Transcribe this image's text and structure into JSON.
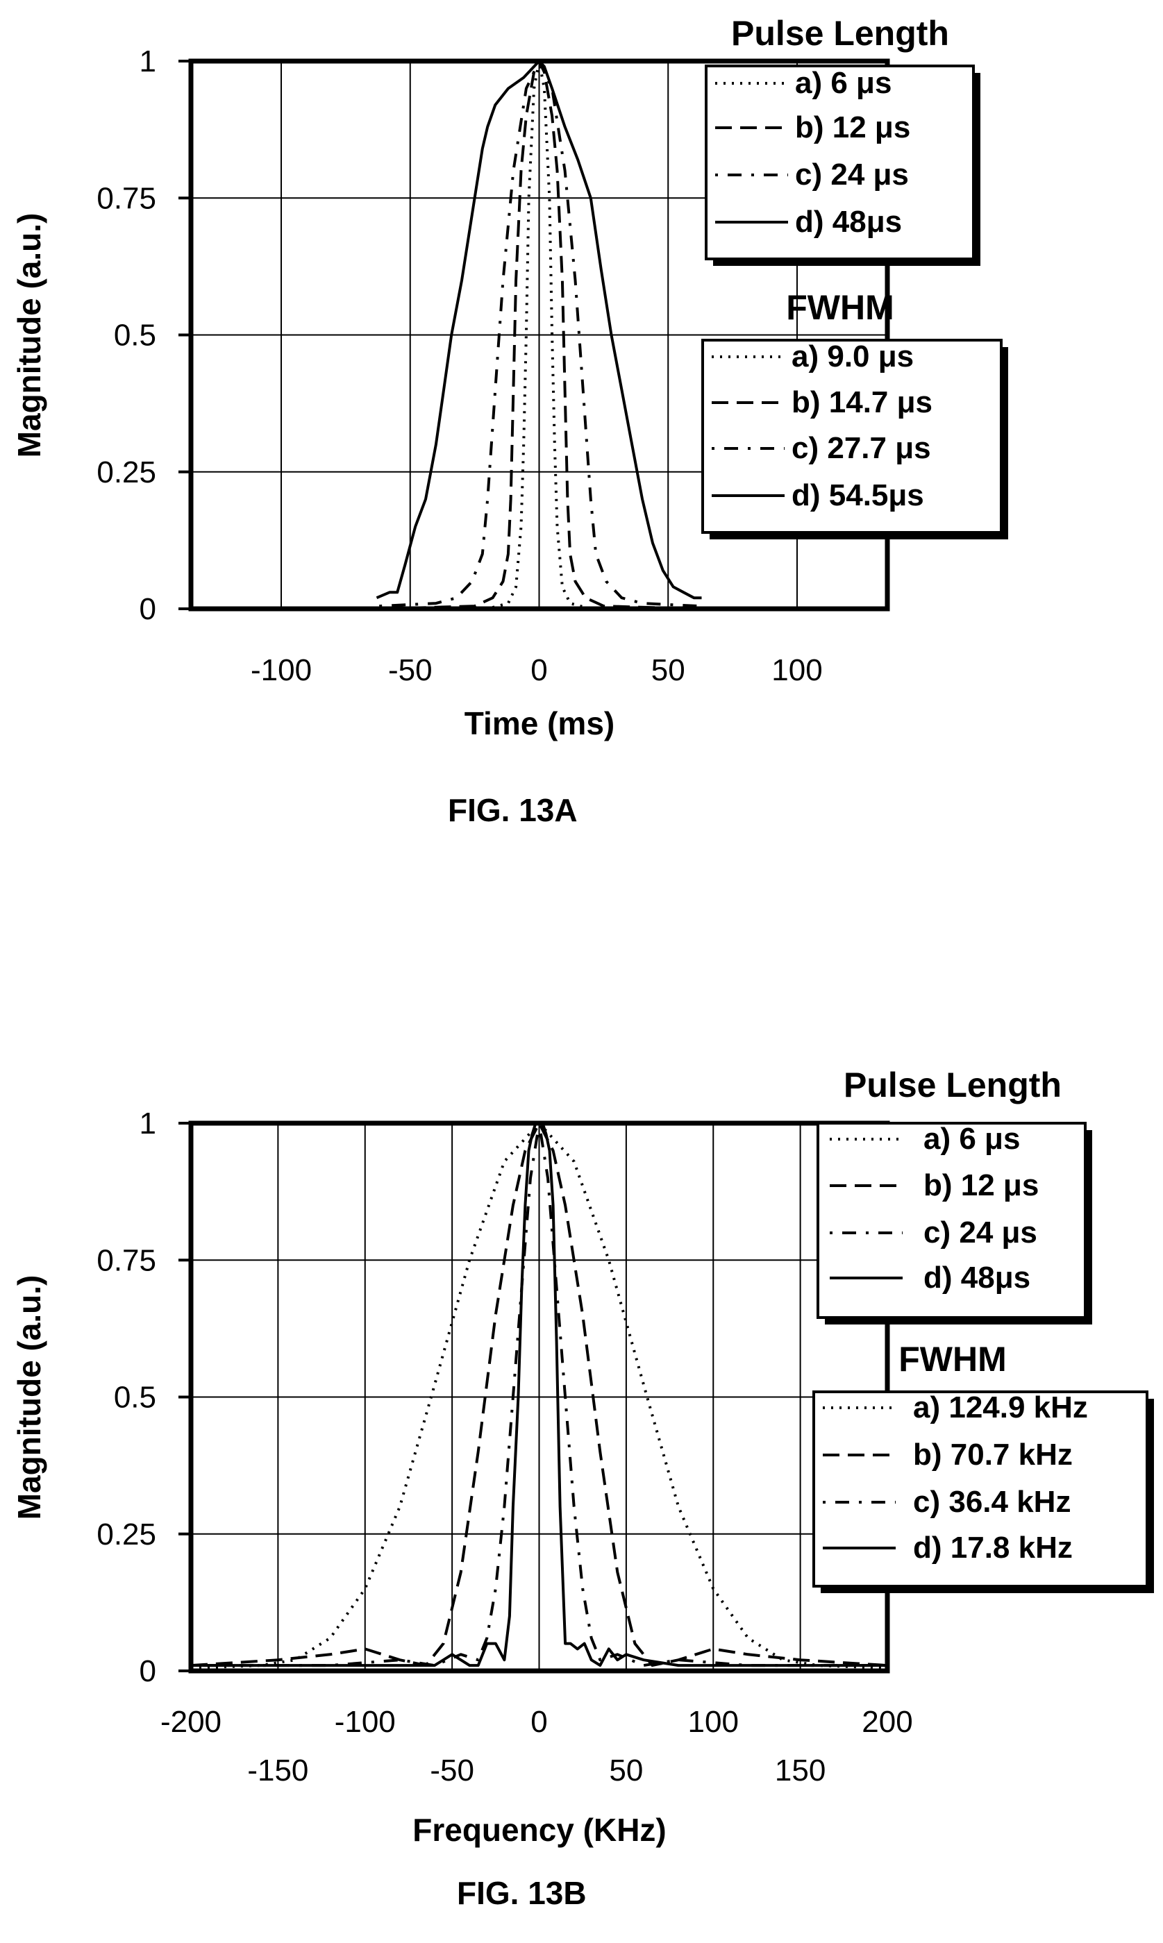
{
  "colors": {
    "ink": "#000000",
    "background": "#ffffff",
    "grid": "#000000"
  },
  "figures": [
    {
      "caption": "FIG. 13A"
    },
    {
      "caption": "FIG. 13B"
    }
  ],
  "chart_data": [
    {
      "type": "line",
      "title": "",
      "caption": "FIG. 13A",
      "xlabel": "Time (ms)",
      "ylabel": "Magnitude (a.u.)",
      "xlim": [
        -135,
        135
      ],
      "ylim": [
        0,
        1
      ],
      "xticks": [
        "-100",
        "-50",
        "0",
        "50",
        "100"
      ],
      "yticks": [
        "0",
        "0.25",
        "0.5",
        "0.75",
        "1"
      ],
      "grid": true,
      "legends": [
        {
          "title": "Pulse Length",
          "placement": "top-right",
          "entries": [
            "a) 6 μs",
            "b) 12 μs",
            "c) 24 μs",
            "d) 48μs"
          ]
        },
        {
          "title": "FWHM",
          "placement": "right",
          "entries": [
            "a) 9.0 μs",
            "b) 14.7 μs",
            "c) 27.7 μs",
            "d) 54.5μs"
          ]
        }
      ],
      "series": [
        {
          "style": "dotted",
          "x": [
            -60,
            -20,
            -12,
            -9,
            -7,
            -6,
            -5,
            -4,
            -2,
            0,
            2,
            4,
            5,
            6,
            7,
            9,
            12,
            20,
            60
          ],
          "y": [
            0,
            0,
            0.01,
            0.04,
            0.15,
            0.3,
            0.5,
            0.75,
            0.95,
            1,
            0.95,
            0.75,
            0.5,
            0.3,
            0.15,
            0.04,
            0.01,
            0,
            0
          ]
        },
        {
          "style": "dashed",
          "x": [
            -60,
            -25,
            -18,
            -14,
            -12,
            -11,
            -10,
            -9,
            -7,
            -5,
            -2,
            0,
            2,
            5,
            7,
            9,
            10,
            11,
            12,
            14,
            18,
            25,
            60
          ],
          "y": [
            0,
            0.005,
            0.02,
            0.05,
            0.1,
            0.2,
            0.4,
            0.6,
            0.8,
            0.9,
            0.98,
            1,
            0.98,
            0.9,
            0.8,
            0.6,
            0.4,
            0.2,
            0.1,
            0.05,
            0.02,
            0.005,
            0
          ]
        },
        {
          "style": "dashdot",
          "x": [
            -62,
            -40,
            -32,
            -26,
            -22,
            -20,
            -17,
            -14,
            -10,
            -5,
            0,
            5,
            10,
            14,
            17,
            20,
            22,
            26,
            32,
            40,
            62
          ],
          "y": [
            0.005,
            0.01,
            0.02,
            0.05,
            0.1,
            0.2,
            0.4,
            0.6,
            0.8,
            0.95,
            1,
            0.95,
            0.8,
            0.6,
            0.4,
            0.2,
            0.1,
            0.05,
            0.02,
            0.01,
            0.005
          ]
        },
        {
          "style": "solid",
          "x": [
            -63,
            -58,
            -55,
            -52,
            -48,
            -44,
            -40,
            -37,
            -34,
            -30,
            -25,
            -22,
            -20,
            -17,
            -12,
            -6,
            -2,
            0,
            2,
            5,
            10,
            15,
            20,
            24,
            28,
            32,
            36,
            40,
            44,
            48,
            52,
            56,
            60,
            63
          ],
          "y": [
            0.02,
            0.03,
            0.03,
            0.08,
            0.15,
            0.2,
            0.3,
            0.4,
            0.5,
            0.6,
            0.75,
            0.84,
            0.88,
            0.92,
            0.95,
            0.97,
            0.99,
            1,
            0.99,
            0.95,
            0.88,
            0.82,
            0.75,
            0.62,
            0.5,
            0.4,
            0.3,
            0.2,
            0.12,
            0.07,
            0.04,
            0.03,
            0.02,
            0.02
          ]
        }
      ]
    },
    {
      "type": "line",
      "title": "",
      "caption": "FIG. 13B",
      "xlabel": "Frequency (KHz)",
      "ylabel": "Magnitude (a.u.)",
      "xlim": [
        -200,
        200
      ],
      "ylim": [
        0,
        1
      ],
      "xticks_major": [
        "-200",
        "-100",
        "0",
        "100",
        "200"
      ],
      "xticks_minor": [
        "-150",
        "-50",
        "50",
        "150"
      ],
      "yticks": [
        "0",
        "0.25",
        "0.5",
        "0.75",
        "1"
      ],
      "grid": true,
      "legends": [
        {
          "title": "Pulse Length",
          "placement": "top-right",
          "entries": [
            "a) 6 μs",
            "b) 12 μs",
            "c) 24 μs",
            "d) 48μs"
          ]
        },
        {
          "title": "FWHM",
          "placement": "right",
          "entries": [
            "a) 124.9 kHz",
            "b) 70.7 kHz",
            "c) 36.4 kHz",
            "d) 17.8 kHz"
          ]
        }
      ],
      "series": [
        {
          "style": "dotted",
          "x": [
            -200,
            -160,
            -140,
            -120,
            -100,
            -80,
            -62,
            -40,
            -20,
            0,
            20,
            40,
            62,
            80,
            100,
            120,
            140,
            160,
            200
          ],
          "y": [
            0.005,
            0.01,
            0.02,
            0.06,
            0.15,
            0.3,
            0.5,
            0.75,
            0.93,
            1,
            0.93,
            0.75,
            0.5,
            0.3,
            0.15,
            0.06,
            0.02,
            0.01,
            0.005
          ]
        },
        {
          "style": "dashed",
          "x": [
            -200,
            -150,
            -120,
            -100,
            -80,
            -65,
            -55,
            -45,
            -35,
            -25,
            -15,
            -8,
            0,
            8,
            15,
            25,
            35,
            45,
            55,
            65,
            80,
            100,
            120,
            150,
            200
          ],
          "y": [
            0.01,
            0.02,
            0.03,
            0.04,
            0.02,
            0.01,
            0.05,
            0.18,
            0.4,
            0.65,
            0.85,
            0.95,
            1,
            0.95,
            0.85,
            0.65,
            0.4,
            0.18,
            0.05,
            0.01,
            0.02,
            0.04,
            0.03,
            0.02,
            0.01
          ]
        },
        {
          "style": "dashdot",
          "x": [
            -200,
            -120,
            -80,
            -60,
            -45,
            -35,
            -30,
            -25,
            -20,
            -15,
            -10,
            -5,
            0,
            5,
            10,
            15,
            20,
            25,
            30,
            35,
            45,
            60,
            80,
            120,
            200
          ],
          "y": [
            0.01,
            0.01,
            0.02,
            0.01,
            0.03,
            0.02,
            0.06,
            0.15,
            0.3,
            0.5,
            0.7,
            0.9,
            1,
            0.9,
            0.7,
            0.5,
            0.3,
            0.15,
            0.06,
            0.02,
            0.03,
            0.01,
            0.02,
            0.01,
            0.01
          ]
        },
        {
          "style": "solid",
          "x": [
            -200,
            -150,
            -100,
            -80,
            -60,
            -50,
            -45,
            -40,
            -35,
            -30,
            -25,
            -20,
            -17,
            -15,
            -12,
            -10,
            -8,
            -6,
            -4,
            -2,
            0,
            2,
            4,
            6,
            8,
            10,
            12,
            15,
            18,
            22,
            26,
            30,
            35,
            40,
            45,
            50,
            60,
            80,
            100,
            150,
            200
          ],
          "y": [
            0.01,
            0.01,
            0.01,
            0.01,
            0.01,
            0.03,
            0.02,
            0.01,
            0.01,
            0.05,
            0.05,
            0.02,
            0.1,
            0.3,
            0.5,
            0.7,
            0.85,
            0.95,
            0.98,
            1,
            1,
            1,
            0.98,
            0.95,
            0.85,
            0.6,
            0.3,
            0.05,
            0.05,
            0.04,
            0.05,
            0.02,
            0.01,
            0.04,
            0.02,
            0.03,
            0.02,
            0.01,
            0.01,
            0.01,
            0.01
          ]
        }
      ]
    }
  ]
}
